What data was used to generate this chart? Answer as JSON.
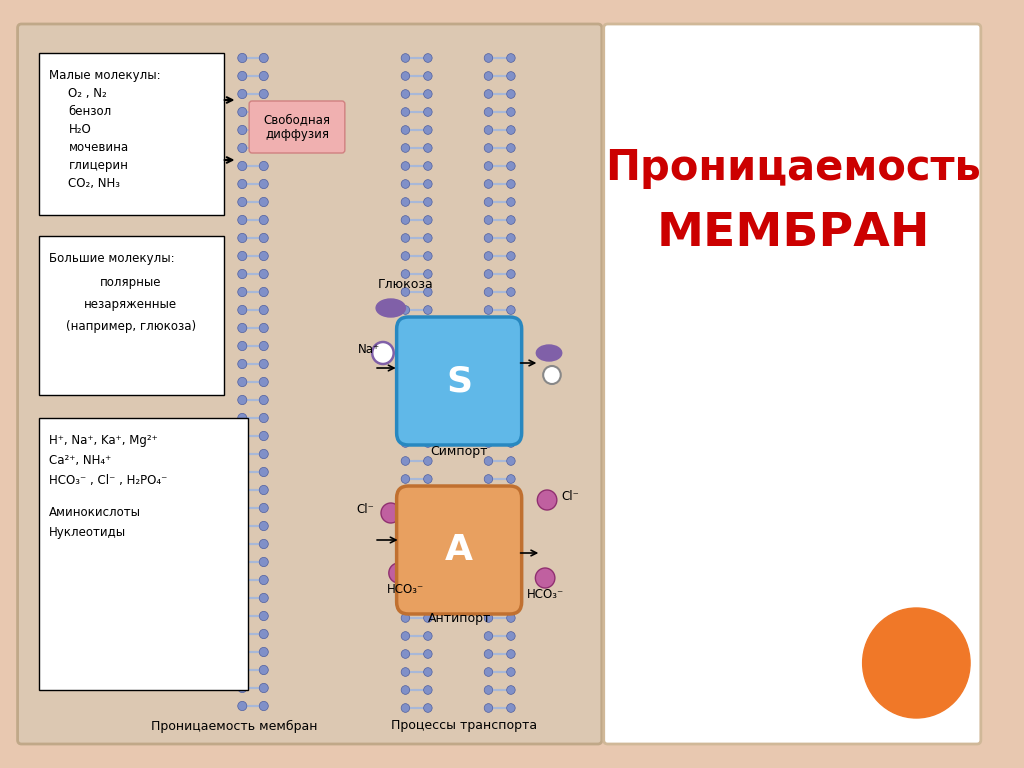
{
  "bg_outer": "#e8c8b0",
  "bg_left_panel": "#ddc8b0",
  "bg_right_panel": "#ffffff",
  "title_line1": "Проницаемость",
  "title_line2": "МЕМБРАН",
  "title_color": "#cc0000",
  "box1_title": "Малые молекулы:",
  "box1_items": [
    "O₂ , N₂",
    "бензол",
    "H₂O",
    "мочевина",
    "глицерин",
    "CO₂, NH₃"
  ],
  "box2_title": "Большие молекулы:",
  "box2_items": [
    "полярные",
    "незаряженные",
    "(например, глюкоза)"
  ],
  "box3_items": [
    "H⁺, Na⁺, Ka⁺, Mg²⁺",
    "Ca²⁺, NH₄⁺",
    "HCO₃⁻ , Cl⁻ , H₂PO₄⁻",
    "",
    "Аминокислоты",
    "Нуклеотиды"
  ],
  "label_bottom_left": "Проницаемость мембран",
  "label_bottom_right": "Процессы транспорта",
  "label_svobodnaya": "Свободная\nдиффузия",
  "label_glyukoza": "Глюкоза",
  "label_na": "Na⁺",
  "label_simport": "Симпорт",
  "label_cl_left": "Cl⁻",
  "label_cl_right": "Cl⁻",
  "label_hco3_left": "HCO₃⁻",
  "label_hco3_right": "HCO₃⁻",
  "label_antiport": "Антипорт",
  "membrane_head_color": "#8090c8",
  "membrane_head_ec": "#5060a0",
  "membrane_tail_color": "#a8b8d8",
  "symport_color": "#60b8e8",
  "antiport_color": "#e8a060",
  "molecule_purple": "#8060a8",
  "molecule_pink": "#c060a0",
  "molecule_white": "#f8f8f8",
  "svoboda_bg": "#f0b0b0",
  "orange_circle_color": "#f07828"
}
